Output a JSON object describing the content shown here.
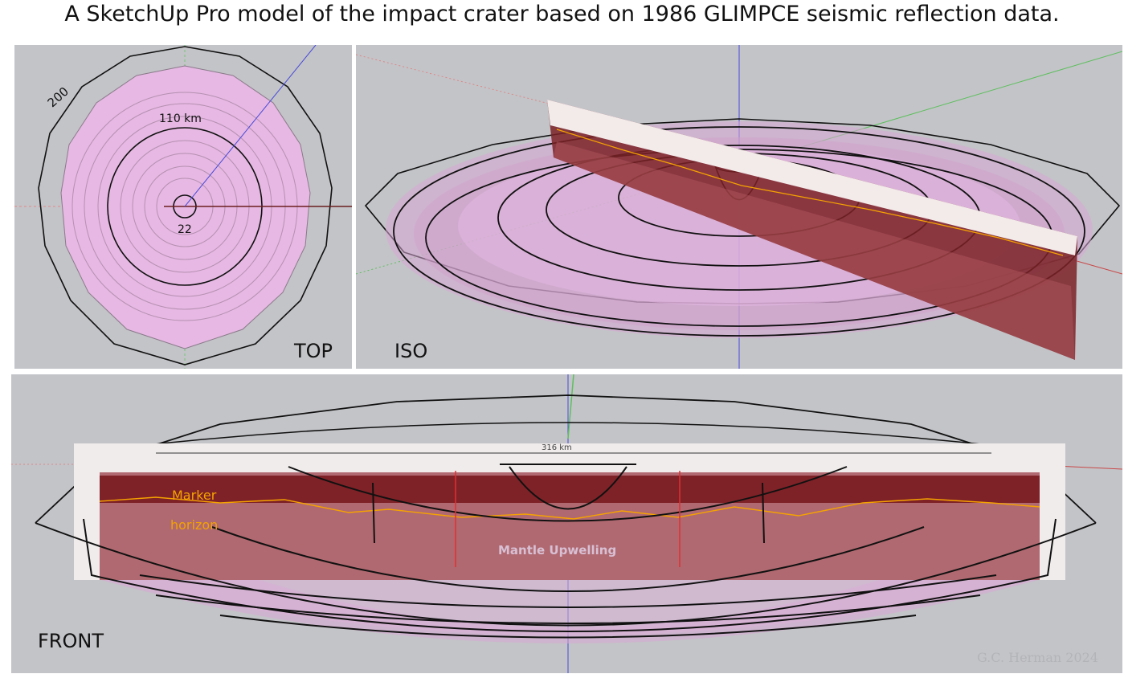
{
  "title": "A SketchUp Pro model of the impact crater based on 1986 GLIMPCE seismic reflection data.",
  "views": {
    "top": "TOP",
    "iso": "ISO",
    "front": "FRONT"
  },
  "top_labels": {
    "outer": "200",
    "middle": "110 km",
    "inner": "22"
  },
  "front_labels": {
    "marker1": "Marker",
    "marker2": "horizon",
    "section_length": "316 km",
    "mantle": "Mantle Upwelling"
  },
  "credit": "G.C. Herman 2024",
  "colors": {
    "background": "#c3c4c8",
    "crater_fill": "#e6b8e3",
    "seismic": "#8a1b20",
    "horizon": "#f5a300"
  }
}
